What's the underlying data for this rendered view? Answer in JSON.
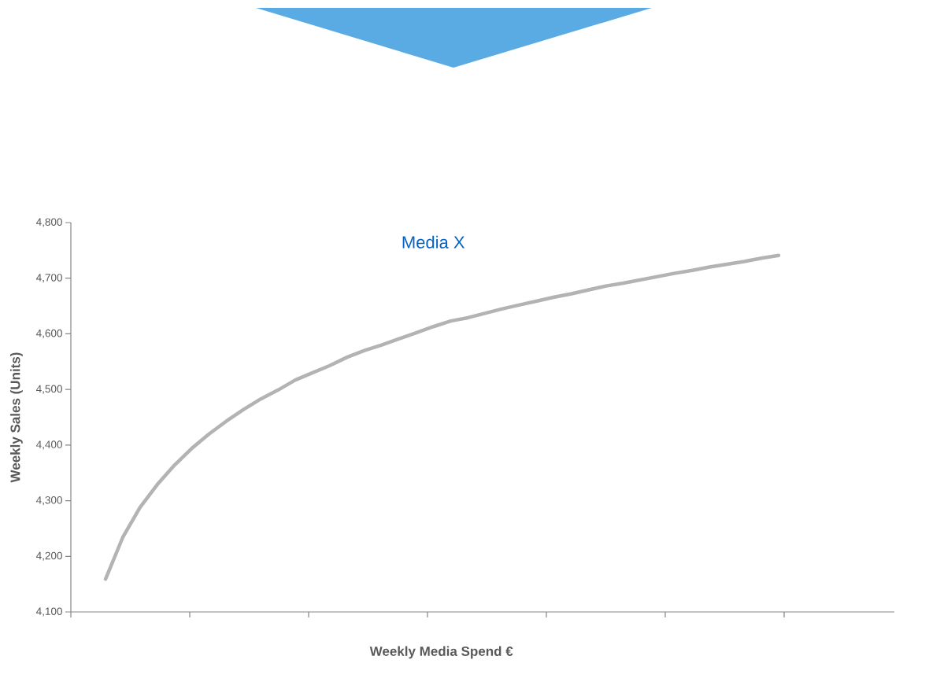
{
  "chart_data": {
    "type": "line",
    "title": "Media X",
    "xlabel": "Weekly Media Spend €",
    "ylabel": "Weekly Sales (Units)",
    "categories": [
      null,
      null,
      null,
      null,
      null,
      null,
      null,
      null,
      null,
      null,
      null,
      null,
      null,
      null,
      null,
      null,
      null,
      null,
      null,
      null,
      null,
      null,
      null,
      null,
      null,
      null,
      null,
      null,
      null,
      null,
      null,
      null,
      null,
      null,
      null,
      null,
      null,
      null,
      null,
      null
    ],
    "series": [
      {
        "color": "#b3b3b3",
        "values": [
          4159,
          4234,
          4288,
          4329,
          4364,
          4394,
          4420,
          4443,
          4464,
          4483,
          4499,
          4517,
          4530,
          4543,
          4558,
          4570,
          4580,
          4591,
          4602,
          4613,
          4623,
          4629,
          4637,
          4645,
          4652,
          4659,
          4666,
          4672,
          4679,
          4686,
          4691,
          4697,
          4703,
          4709,
          4714,
          4720,
          4725,
          4730,
          4736,
          4741
        ]
      }
    ],
    "ylim": [
      4100,
      4800
    ],
    "yticks": [
      {
        "value": 4100,
        "label": "4,100"
      },
      {
        "value": 4200,
        "label": "4,200"
      },
      {
        "value": 4300,
        "label": "4,300"
      },
      {
        "value": 4400,
        "label": "4,400"
      },
      {
        "value": 4500,
        "label": "4,500"
      },
      {
        "value": 4600,
        "label": "4,600"
      },
      {
        "value": 4700,
        "label": "4,700"
      },
      {
        "value": 4800,
        "label": "4,800"
      }
    ],
    "tick_labels": "y"
  }
}
